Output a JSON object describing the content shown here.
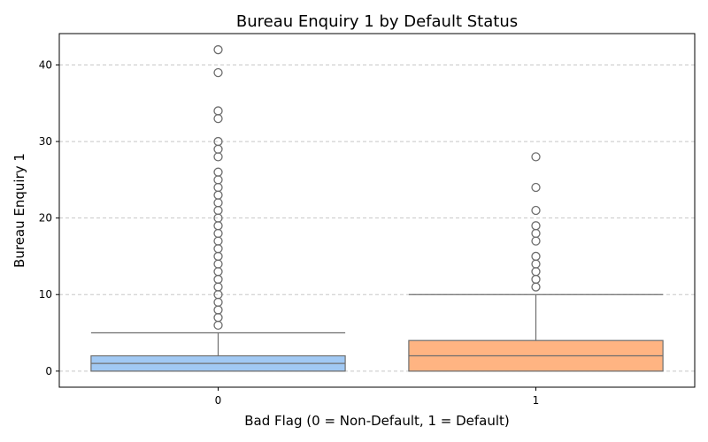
{
  "chart_data": {
    "type": "box",
    "title": "Bureau Enquiry 1 by Default Status",
    "xlabel": "Bad Flag (0 = Non-Default, 1 = Default)",
    "ylabel": "Bureau Enquiry 1",
    "ylim": [
      -2.1,
      44.1
    ],
    "yticks": [
      0,
      10,
      20,
      30,
      40
    ],
    "grid": "y-dashed",
    "categories": [
      "0",
      "1"
    ],
    "boxes": [
      {
        "category": "0",
        "color": "#a1c9f4",
        "whisker_low": 0,
        "q1": 0,
        "median": 1,
        "q3": 2,
        "whisker_high": 5,
        "outliers": [
          6,
          7,
          8,
          9,
          10,
          11,
          12,
          13,
          14,
          15,
          16,
          17,
          18,
          19,
          20,
          21,
          22,
          23,
          24,
          25,
          26,
          28,
          29,
          30,
          33,
          34,
          39,
          42
        ]
      },
      {
        "category": "1",
        "color": "#ffb482",
        "whisker_low": 0,
        "q1": 0,
        "median": 2,
        "q3": 4,
        "whisker_high": 10,
        "outliers": [
          11,
          12,
          13,
          14,
          15,
          17,
          18,
          19,
          21,
          24,
          28
        ]
      }
    ]
  }
}
